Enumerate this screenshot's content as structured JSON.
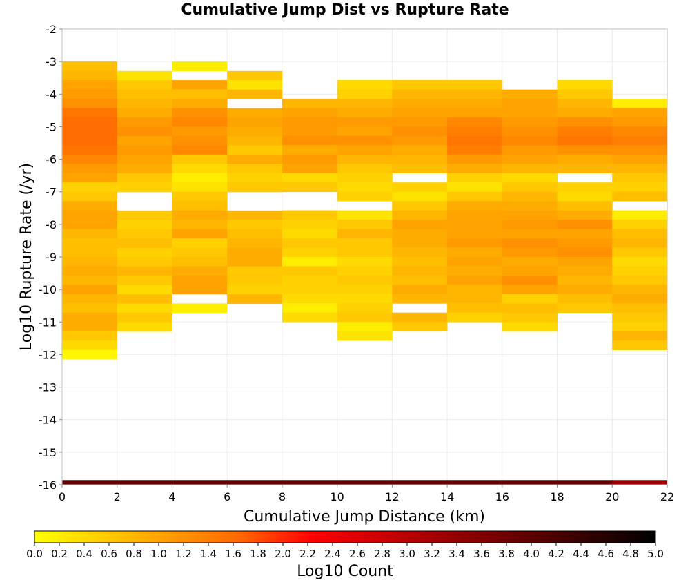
{
  "chart_data": {
    "type": "heatmap",
    "title": "Cumulative Jump Dist vs Rupture Rate",
    "xlabel": "Cumulative Jump Distance (km)",
    "ylabel": "Log10 Rupture Rate (/yr)",
    "xlim": [
      0,
      22
    ],
    "ylim": [
      -16,
      -2
    ],
    "x_ticks": [
      "0",
      "2",
      "4",
      "6",
      "8",
      "10",
      "12",
      "14",
      "16",
      "18",
      "20",
      "22"
    ],
    "y_ticks": [
      "-2",
      "-3",
      "-4",
      "-5",
      "-6",
      "-7",
      "-8",
      "-9",
      "-10",
      "-11",
      "-12",
      "-13",
      "-14",
      "-15",
      "-16"
    ],
    "x_bin_width": 2,
    "y_bin_height": 0.2857,
    "grid": true,
    "colorbar": {
      "label": "Log10 Count",
      "range": [
        0,
        5
      ],
      "ticks": [
        "0.0",
        "0.2",
        "0.4",
        "0.6",
        "0.8",
        "1.0",
        "1.2",
        "1.4",
        "1.6",
        "1.8",
        "2.0",
        "2.2",
        "2.4",
        "2.6",
        "2.8",
        "3.0",
        "3.2",
        "3.4",
        "3.6",
        "3.8",
        "4.0",
        "4.2",
        "4.4",
        "4.6",
        "4.8",
        "5.0"
      ],
      "colors": [
        "#ffff00",
        "#ffcc00",
        "#ff9900",
        "#ff6600",
        "#ff0000",
        "#cc0000",
        "#990000",
        "#660000",
        "#330000",
        "#000000"
      ],
      "placement": "bottom"
    },
    "columns": [
      {
        "x_start": 0,
        "y_top": -3.0,
        "values": [
          0.7,
          0.8,
          1.0,
          1.1,
          1.2,
          1.5,
          1.6,
          1.6,
          1.6,
          1.5,
          1.3,
          1.1,
          1.0,
          0.5,
          0.6,
          0.9,
          1.0,
          1.0,
          0.8,
          0.7,
          0.7,
          0.8,
          0.9,
          0.8,
          1.0,
          0.8,
          0.7,
          0.9,
          0.9,
          0.6,
          0.4,
          0.1
        ]
      },
      {
        "x_start": 2,
        "y_top": -3.29,
        "values": [
          0.3,
          0.6,
          0.7,
          0.8,
          0.9,
          1.1,
          1.2,
          1.0,
          1.1,
          1.0,
          0.9,
          0.6,
          0.5,
          null,
          null,
          0.6,
          0.5,
          0.6,
          0.7,
          0.5,
          0.6,
          0.8,
          0.6,
          0.4,
          0.7,
          0.4,
          0.6,
          0.4
        ]
      },
      {
        "x_start": 4,
        "y_top": -3.0,
        "values": [
          0.2,
          null,
          1.0,
          0.7,
          0.9,
          1.2,
          1.3,
          1.1,
          1.2,
          1.3,
          0.6,
          0.4,
          0.2,
          0.3,
          0.6,
          0.7,
          0.9,
          0.8,
          1.0,
          0.5,
          0.6,
          0.7,
          0.9,
          1.0,
          1.0,
          null,
          0.2
        ]
      },
      {
        "x_start": 6,
        "y_top": -3.29,
        "values": [
          0.6,
          0.3,
          0.8,
          null,
          0.9,
          1.0,
          0.9,
          0.8,
          0.6,
          0.9,
          0.6,
          0.5,
          0.6,
          null,
          null,
          0.8,
          0.6,
          0.7,
          0.8,
          0.9,
          0.9,
          0.6,
          0.6,
          0.5,
          0.8
        ]
      },
      {
        "x_start": 8,
        "y_top": -4.14,
        "values": [
          0.8,
          1.0,
          1.1,
          1.1,
          1.2,
          0.9,
          1.1,
          1.0,
          0.4,
          0.6,
          null,
          null,
          0.6,
          0.5,
          0.4,
          0.6,
          0.5,
          0.2,
          0.6,
          0.5,
          0.5,
          0.4,
          0.2,
          0.4
        ]
      },
      {
        "x_start": 10,
        "y_top": -3.57,
        "values": [
          0.4,
          0.5,
          0.8,
          0.9,
          1.1,
          1.0,
          1.2,
          1.0,
          0.8,
          0.6,
          0.5,
          0.4,
          0.5,
          null,
          0.3,
          0.6,
          0.8,
          0.6,
          0.6,
          0.4,
          0.5,
          0.6,
          0.5,
          0.4,
          0.5,
          0.6,
          0.2,
          0.3
        ]
      },
      {
        "x_start": 12,
        "y_top": -3.57,
        "values": [
          0.6,
          0.8,
          0.9,
          1.0,
          1.1,
          1.2,
          1.1,
          0.9,
          0.8,
          0.7,
          null,
          0.5,
          0.3,
          0.6,
          0.8,
          1.0,
          0.9,
          0.9,
          0.8,
          0.7,
          0.8,
          0.7,
          0.9,
          0.8,
          null,
          0.8,
          0.6
        ]
      },
      {
        "x_start": 14,
        "y_top": -3.57,
        "values": [
          0.6,
          0.8,
          0.9,
          1.0,
          1.3,
          1.4,
          1.5,
          1.4,
          1.1,
          0.9,
          0.5,
          0.3,
          0.6,
          0.9,
          1.0,
          1.0,
          1.0,
          1.1,
          0.9,
          1.0,
          0.9,
          1.0,
          0.8,
          0.8,
          0.7,
          0.5
        ]
      },
      {
        "x_start": 16,
        "y_top": -3.86,
        "values": [
          0.9,
          1.0,
          1.0,
          1.1,
          1.2,
          1.3,
          1.1,
          1.0,
          0.8,
          0.4,
          0.6,
          0.8,
          0.9,
          1.0,
          1.1,
          1.0,
          1.2,
          1.1,
          0.9,
          1.0,
          1.2,
          1.0,
          0.5,
          0.7,
          0.6,
          0.4
        ]
      },
      {
        "x_start": 18,
        "y_top": -3.57,
        "values": [
          0.4,
          0.6,
          0.8,
          0.9,
          1.2,
          1.4,
          1.5,
          1.2,
          0.9,
          0.8,
          null,
          0.5,
          0.4,
          0.7,
          0.9,
          1.2,
          1.0,
          1.1,
          1.2,
          1.0,
          0.9,
          0.8,
          0.9,
          0.7,
          0.6
        ]
      },
      {
        "x_start": 20,
        "y_top": -4.14,
        "values": [
          0.2,
          1.0,
          1.1,
          1.3,
          1.4,
          1.2,
          1.0,
          0.8,
          0.6,
          0.5,
          0.7,
          null,
          0.2,
          0.5,
          0.7,
          0.8,
          0.6,
          0.4,
          0.5,
          0.6,
          0.8,
          0.9,
          0.7,
          0.6,
          0.5,
          0.8,
          0.6
        ]
      }
    ],
    "bottom_row": {
      "y": -16,
      "value": 3.9,
      "last_value": 3.3
    }
  }
}
